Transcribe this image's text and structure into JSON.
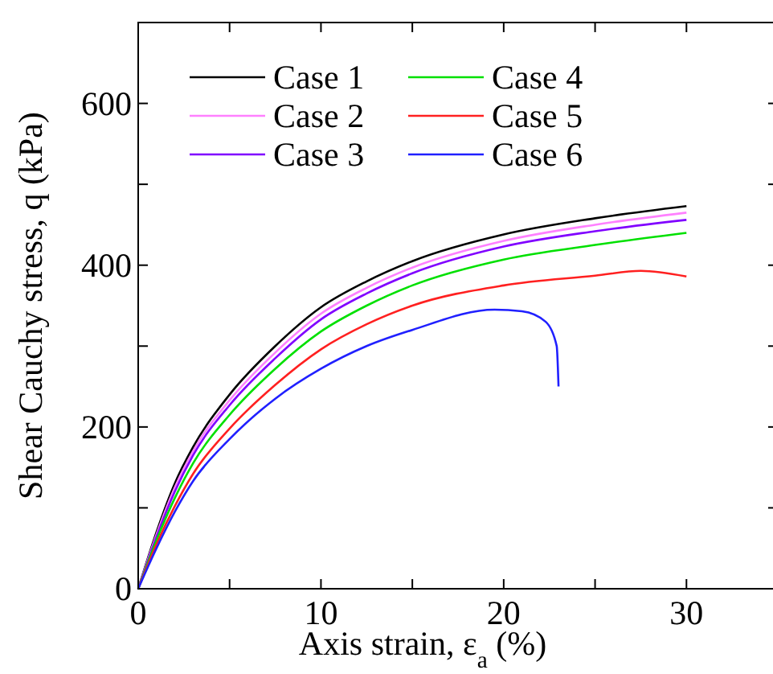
{
  "chart_data": {
    "type": "line",
    "xlabel": "Axis strain, ε$_{a}$ (%)",
    "ylabel": "Shear Cauchy stress, q (kPa)",
    "xlim": [
      0,
      35
    ],
    "ylim": [
      0,
      700
    ],
    "xticks": [
      0,
      {
        "value": 5,
        "label": null
      },
      10,
      {
        "value": 15,
        "label": null
      },
      20,
      {
        "value": 25,
        "label": null
      },
      30,
      {
        "value": 35,
        "label": null
      }
    ],
    "yticks": [
      0,
      {
        "value": 100,
        "label": null
      },
      200,
      {
        "value": 300,
        "label": null
      },
      400,
      {
        "value": 500,
        "label": null
      },
      600,
      {
        "value": 700,
        "label": null
      }
    ],
    "grid": false,
    "legend": "top left",
    "marker": "none",
    "line_style": "solid",
    "series": [
      {
        "name": "Case 1",
        "color": "#000000",
        "x": [
          0,
          1,
          2,
          3,
          5,
          7.5,
          10,
          12.5,
          15,
          20,
          25,
          30
        ],
        "values": [
          0,
          70,
          130,
          175,
          240,
          300,
          348,
          380,
          405,
          438,
          458,
          473
        ]
      },
      {
        "name": "Case 2",
        "color": "#ff80ff",
        "x": [
          0,
          1,
          2,
          3,
          5,
          7.5,
          10,
          12.5,
          15,
          20,
          25,
          30
        ],
        "values": [
          0,
          67,
          125,
          170,
          233,
          292,
          340,
          372,
          397,
          430,
          450,
          465
        ]
      },
      {
        "name": "Case 3",
        "color": "#8000ff",
        "x": [
          0,
          1,
          2,
          3,
          5,
          7.5,
          10,
          12.5,
          15,
          20,
          25,
          30
        ],
        "values": [
          0,
          64,
          120,
          165,
          227,
          285,
          333,
          365,
          390,
          423,
          442,
          456
        ]
      },
      {
        "name": "Case 4",
        "color": "#00e000",
        "x": [
          0,
          1,
          2,
          3,
          5,
          7.5,
          10,
          12.5,
          15,
          20,
          25,
          30
        ],
        "values": [
          0,
          60,
          112,
          155,
          215,
          272,
          318,
          350,
          375,
          407,
          425,
          440
        ]
      },
      {
        "name": "Case 5",
        "color": "#ff2020",
        "x": [
          0,
          1,
          2,
          3,
          5,
          7.5,
          10,
          12.5,
          15,
          20,
          25,
          27.5,
          30
        ],
        "values": [
          0,
          55,
          102,
          142,
          198,
          252,
          296,
          327,
          350,
          375,
          387,
          393,
          386
        ]
      },
      {
        "name": "Case 6",
        "color": "#2020ff",
        "x": [
          0,
          1,
          2,
          3,
          5,
          7.5,
          10,
          12.5,
          15,
          19.5,
          21,
          22.3,
          22.9,
          23
        ],
        "values": [
          0,
          50,
          95,
          133,
          185,
          235,
          272,
          300,
          320,
          345,
          343,
          330,
          300,
          250
        ]
      }
    ]
  }
}
